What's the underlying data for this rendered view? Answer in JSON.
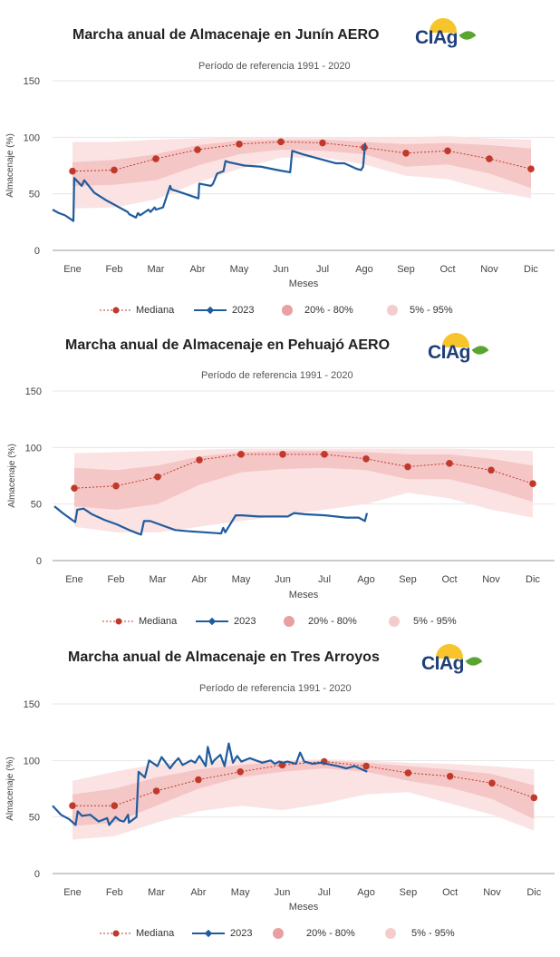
{
  "colors": {
    "median": "#c0392b",
    "series2023": "#1f5c9e",
    "band_20_80": "#f5c6c6",
    "band_5_95": "#fbe3e3",
    "grid": "#e6e6e6",
    "axis_text": "#444444"
  },
  "legend": {
    "median": "Mediana",
    "series2023": "2023",
    "band_20_80": "20% - 80%",
    "band_5_95": "5% - 95%"
  },
  "logo": {
    "text": "CIAg",
    "sun_icon": "sun-icon",
    "leaf_icon": "leaf-icon"
  },
  "chart_data": [
    {
      "type": "line",
      "title": "Marcha anual de Almacenaje en Junín AERO",
      "subtitle": "Período de referencia 1991 - 2020",
      "xlabel": "Meses",
      "ylabel": "Almacenaje (%)",
      "ylim": [
        0,
        150
      ],
      "yticks": [
        0,
        50,
        100,
        150
      ],
      "categories": [
        "Ene",
        "Feb",
        "Mar",
        "Abr",
        "May",
        "Jun",
        "Jul",
        "Ago",
        "Sep",
        "Oct",
        "Nov",
        "Dic"
      ],
      "median": [
        70,
        71,
        81,
        89,
        94,
        96,
        95,
        91,
        86,
        88,
        81,
        72
      ],
      "band_20_80": {
        "low": [
          57,
          58,
          62,
          75,
          85,
          89,
          88,
          85,
          74,
          76,
          68,
          55
        ],
        "high": [
          78,
          80,
          85,
          93,
          97,
          98,
          98,
          96,
          94,
          95,
          93,
          90
        ]
      },
      "band_5_95": {
        "low": [
          37,
          38,
          45,
          60,
          72,
          82,
          82,
          76,
          66,
          63,
          53,
          46
        ],
        "high": [
          96,
          96,
          98,
          99,
          100,
          100,
          100,
          100,
          100,
          101,
          99,
          98
        ]
      },
      "series": [
        {
          "name": "2023",
          "x": [
            0,
            0.15,
            0.3,
            0.42,
            0.5,
            0.52,
            0.7,
            0.76,
            1.0,
            1.3,
            1.6,
            1.8,
            1.84,
            2.0,
            2.05,
            2.1,
            2.3,
            2.35,
            2.45,
            2.48,
            2.65,
            2.82,
            2.85,
            3.1,
            3.5,
            3.52,
            3.8,
            3.85,
            3.95,
            4.1,
            4.15,
            4.22,
            4.6,
            5.0,
            5.4,
            5.7,
            5.75,
            6.0,
            6.4,
            6.8,
            7.0,
            7.3,
            7.4,
            7.45,
            7.5
          ],
          "values": [
            36,
            33,
            31,
            28,
            26,
            64,
            57,
            62,
            51,
            44,
            38,
            34,
            32,
            29,
            33,
            31,
            36,
            34,
            38,
            36,
            38,
            57,
            54,
            51,
            46,
            59,
            57,
            59,
            68,
            70,
            79,
            78,
            75,
            74,
            71,
            69,
            88,
            85,
            81,
            77,
            77,
            72,
            71,
            74,
            95
          ]
        }
      ],
      "legend_position": "bottom",
      "grid": true
    },
    {
      "type": "line",
      "title": "Marcha anual de Almacenaje en Pehuajó AERO",
      "subtitle": "Período de referencia 1991 - 2020",
      "xlabel": "Meses",
      "ylabel": "Almacenaje (%)",
      "ylim": [
        0,
        150
      ],
      "yticks": [
        0,
        50,
        100,
        150
      ],
      "categories": [
        "Ene",
        "Feb",
        "Mar",
        "Abr",
        "May",
        "Jun",
        "Jul",
        "Ago",
        "Sep",
        "Oct",
        "Nov",
        "Dic"
      ],
      "median": [
        64,
        66,
        74,
        89,
        94,
        94,
        94,
        90,
        83,
        86,
        80,
        68
      ],
      "band_20_80": {
        "low": [
          48,
          45,
          50,
          67,
          78,
          81,
          82,
          80,
          72,
          72,
          63,
          52
        ],
        "high": [
          82,
          80,
          84,
          92,
          96,
          97,
          97,
          96,
          94,
          94,
          90,
          84
        ]
      },
      "band_5_95": {
        "low": [
          30,
          25,
          25,
          30,
          35,
          40,
          45,
          50,
          60,
          55,
          45,
          38
        ],
        "high": [
          95,
          96,
          97,
          98,
          99,
          99,
          99,
          99,
          99,
          99,
          98,
          97
        ]
      },
      "series": [
        {
          "name": "2023",
          "x": [
            0,
            0.2,
            0.35,
            0.5,
            0.55,
            0.7,
            0.9,
            1.2,
            1.5,
            1.8,
            2.0,
            2.08,
            2.15,
            2.3,
            2.6,
            2.9,
            3.2,
            3.6,
            4.0,
            4.05,
            4.1,
            4.3,
            4.35,
            4.5,
            4.9,
            5.4,
            5.6,
            5.75,
            6.0,
            6.5,
            7.0,
            7.3,
            7.35,
            7.45,
            7.5
          ],
          "values": [
            48,
            42,
            38,
            34,
            45,
            46,
            41,
            36,
            32,
            27,
            24,
            23,
            35,
            35,
            31,
            27,
            26,
            25,
            24,
            29,
            25,
            37,
            40,
            40,
            39,
            39,
            39,
            42,
            41,
            40,
            38,
            38,
            37,
            35,
            42
          ]
        }
      ],
      "legend_position": "bottom",
      "grid": true
    },
    {
      "type": "line",
      "title": "Marcha anual de Almacenaje en Tres Arroyos",
      "subtitle": "Período de referencia 1991 - 2020",
      "xlabel": "Meses",
      "ylabel": "Almacenaje (%)",
      "ylim": [
        0,
        150
      ],
      "yticks": [
        0,
        50,
        100,
        150
      ],
      "categories": [
        "Ene",
        "Feb",
        "Mar",
        "Abr",
        "May",
        "Jun",
        "Jul",
        "Ago",
        "Sep",
        "Oct",
        "Nov",
        "Dic"
      ],
      "median": [
        60,
        60,
        73,
        83,
        90,
        96,
        99,
        95,
        89,
        86,
        80,
        67
      ],
      "band_20_80": {
        "low": [
          42,
          45,
          60,
          75,
          85,
          90,
          93,
          90,
          82,
          76,
          66,
          48
        ],
        "high": [
          70,
          75,
          85,
          92,
          96,
          99,
          100,
          98,
          95,
          92,
          88,
          78
        ]
      },
      "band_5_95": {
        "low": [
          30,
          33,
          45,
          55,
          60,
          56,
          62,
          70,
          72,
          62,
          52,
          38
        ],
        "high": [
          82,
          90,
          97,
          99,
          100,
          100,
          101,
          100,
          98,
          97,
          95,
          92
        ]
      },
      "series": [
        {
          "name": "2023",
          "x": [
            0,
            0.2,
            0.4,
            0.55,
            0.6,
            0.7,
            0.9,
            1.1,
            1.3,
            1.35,
            1.5,
            1.6,
            1.7,
            1.8,
            1.82,
            2.0,
            2.05,
            2.2,
            2.3,
            2.5,
            2.6,
            2.8,
            2.9,
            3.0,
            3.1,
            3.3,
            3.4,
            3.5,
            3.65,
            3.7,
            3.8,
            3.85,
            4.0,
            4.1,
            4.2,
            4.3,
            4.4,
            4.5,
            4.7,
            5.0,
            5.2,
            5.3,
            5.4,
            5.5,
            5.6,
            5.8,
            5.9,
            6.0,
            6.2,
            6.4,
            6.8,
            7.0,
            7.2,
            7.5
          ],
          "values": [
            60,
            52,
            48,
            43,
            55,
            51,
            52,
            46,
            49,
            43,
            50,
            47,
            46,
            52,
            45,
            50,
            90,
            85,
            100,
            95,
            103,
            93,
            98,
            102,
            96,
            100,
            98,
            104,
            95,
            112,
            97,
            100,
            105,
            95,
            115,
            98,
            104,
            99,
            102,
            98,
            100,
            97,
            99,
            98,
            99,
            97,
            107,
            99,
            97,
            98,
            95,
            93,
            95,
            90
          ]
        }
      ],
      "legend_position": "bottom",
      "grid": true
    }
  ]
}
